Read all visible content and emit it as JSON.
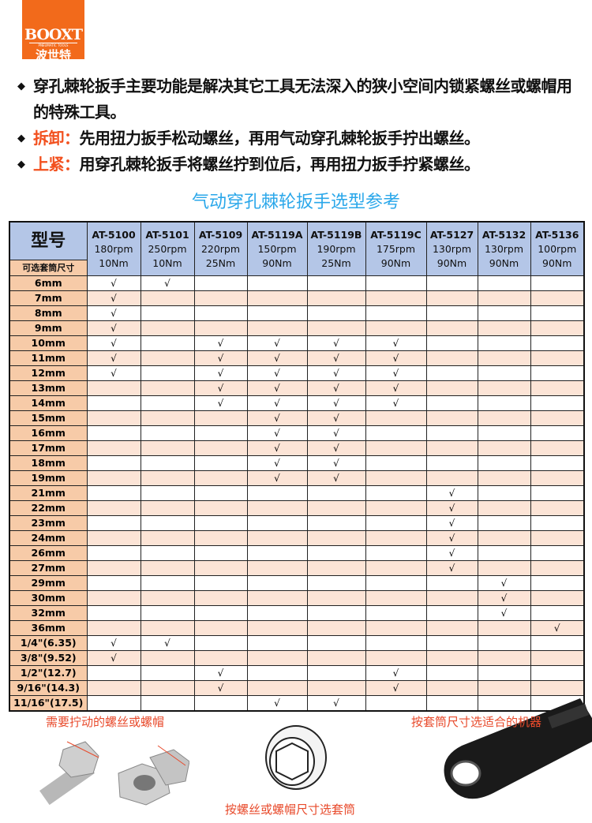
{
  "logo": {
    "brand": "BOOXT",
    "tagline": "PNEUMATIC TOOLS",
    "chinese": "波世特"
  },
  "intro": {
    "line1": "穿孔棘轮扳手主要功能是解决其它工具无法深入的狭小空间内锁紧螺丝或螺帽用的特殊工具。",
    "remove_label": "拆卸：",
    "remove_text": "先用扭力扳手松动螺丝，再用气动穿孔棘轮扳手拧出螺丝。",
    "tighten_label": "上紧：",
    "tighten_text": "用穿孔棘轮扳手将螺丝拧到位后，再用扭力扳手拧紧螺丝。"
  },
  "table_title": "气动穿孔棘轮扳手选型参考",
  "table": {
    "model_header": "型号",
    "size_header": "可选套筒尺寸",
    "check": "√",
    "models": [
      {
        "name": "AT-5100",
        "speed": "180rpm",
        "torque": "10Nm"
      },
      {
        "name": "AT-5101",
        "speed": "250rpm",
        "torque": "10Nm"
      },
      {
        "name": "AT-5109",
        "speed": "220rpm",
        "torque": "25Nm"
      },
      {
        "name": "AT-5119A",
        "speed": "150rpm",
        "torque": "90Nm"
      },
      {
        "name": "AT-5119B",
        "speed": "190rpm",
        "torque": "25Nm"
      },
      {
        "name": "AT-5119C",
        "speed": "175rpm",
        "torque": "90Nm"
      },
      {
        "name": "AT-5127",
        "speed": "130rpm",
        "torque": "90Nm"
      },
      {
        "name": "AT-5132",
        "speed": "130rpm",
        "torque": "90Nm"
      },
      {
        "name": "AT-5136",
        "speed": "100rpm",
        "torque": "90Nm"
      }
    ],
    "rows": [
      {
        "size": "6mm",
        "fits": [
          0,
          1
        ]
      },
      {
        "size": "7mm",
        "fits": [
          0
        ]
      },
      {
        "size": "8mm",
        "fits": [
          0
        ]
      },
      {
        "size": "9mm",
        "fits": [
          0
        ]
      },
      {
        "size": "10mm",
        "fits": [
          0,
          2,
          3,
          4,
          5
        ]
      },
      {
        "size": "11mm",
        "fits": [
          0,
          2,
          3,
          4,
          5
        ]
      },
      {
        "size": "12mm",
        "fits": [
          0,
          2,
          3,
          4,
          5
        ]
      },
      {
        "size": "13mm",
        "fits": [
          2,
          3,
          4,
          5
        ]
      },
      {
        "size": "14mm",
        "fits": [
          2,
          3,
          4,
          5
        ]
      },
      {
        "size": "15mm",
        "fits": [
          3,
          4
        ]
      },
      {
        "size": "16mm",
        "fits": [
          3,
          4
        ]
      },
      {
        "size": "17mm",
        "fits": [
          3,
          4
        ]
      },
      {
        "size": "18mm",
        "fits": [
          3,
          4
        ]
      },
      {
        "size": "19mm",
        "fits": [
          3,
          4
        ]
      },
      {
        "size": "21mm",
        "fits": [
          6
        ]
      },
      {
        "size": "22mm",
        "fits": [
          6
        ]
      },
      {
        "size": "23mm",
        "fits": [
          6
        ]
      },
      {
        "size": "24mm",
        "fits": [
          6
        ]
      },
      {
        "size": "26mm",
        "fits": [
          6
        ]
      },
      {
        "size": "27mm",
        "fits": [
          6
        ]
      },
      {
        "size": "29mm",
        "fits": [
          7
        ]
      },
      {
        "size": "30mm",
        "fits": [
          7
        ]
      },
      {
        "size": "32mm",
        "fits": [
          7
        ]
      },
      {
        "size": "36mm",
        "fits": [
          8
        ]
      },
      {
        "size": "1/4\"(6.35)",
        "fits": [
          0,
          1
        ]
      },
      {
        "size": "3/8\"(9.52)",
        "fits": [
          0
        ]
      },
      {
        "size": "1/2\"(12.7)",
        "fits": [
          2,
          5
        ]
      },
      {
        "size": "9/16\"(14.3)",
        "fits": [
          2,
          5
        ]
      },
      {
        "size": "11/16\"(17.5)",
        "fits": [
          3,
          4
        ]
      }
    ]
  },
  "captions": {
    "bolt": "需要拧动的螺丝或螺帽",
    "machine": "按套筒尺寸选适合的机器",
    "socket": "按螺丝或螺帽尺寸选套筒"
  },
  "colors": {
    "brand": "#f26a1b",
    "accent_red": "#f2501e",
    "title_blue": "#2aa7ea",
    "header_blue": "#b4c6e7",
    "size_col": "#f7cba8",
    "alt_row": "#fce4d6"
  }
}
